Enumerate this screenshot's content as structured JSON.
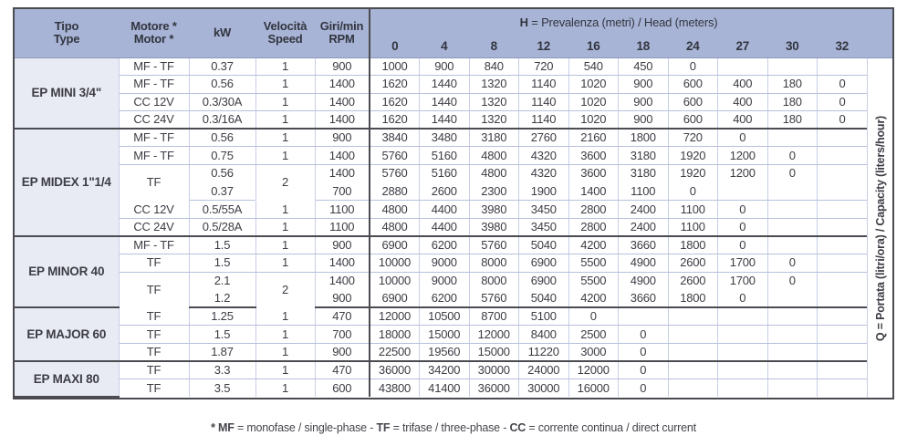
{
  "header": {
    "tipo": [
      "Tipo",
      "Type"
    ],
    "motor": [
      "Motore *",
      "Motor *"
    ],
    "kw": "kW",
    "speed": [
      "Velocità",
      "Speed"
    ],
    "rpm": [
      "Giri/min",
      "RPM"
    ],
    "h_label_bold": "H",
    "h_label_rest": " = Prevalenza (metri) / Head (meters)",
    "h_values": [
      "0",
      "4",
      "8",
      "12",
      "16",
      "18",
      "24",
      "27",
      "30",
      "32"
    ]
  },
  "q_axis": {
    "bold": "Q",
    "rest": " = Portata (litri/ora) / Capacity (liters/hour)"
  },
  "sections": [
    {
      "name": "EP MINI 3/4\"",
      "rows": [
        {
          "motor": "MF - TF",
          "kw": "0.37",
          "speed": "1",
          "rpm": "900",
          "q": [
            "1000",
            "900",
            "840",
            "720",
            "540",
            "450",
            "0",
            "",
            "",
            ""
          ]
        },
        {
          "motor": "MF - TF",
          "kw": "0.56",
          "speed": "1",
          "rpm": "1400",
          "q": [
            "1620",
            "1440",
            "1320",
            "1140",
            "1020",
            "900",
            "600",
            "400",
            "180",
            "0"
          ]
        },
        {
          "motor": "CC 12V",
          "kw": "0.3/30A",
          "speed": "1",
          "rpm": "1400",
          "q": [
            "1620",
            "1440",
            "1320",
            "1140",
            "1020",
            "900",
            "600",
            "400",
            "180",
            "0"
          ]
        },
        {
          "motor": "CC 24V",
          "kw": "0.3/16A",
          "speed": "1",
          "rpm": "1400",
          "q": [
            "1620",
            "1440",
            "1320",
            "1140",
            "1020",
            "900",
            "600",
            "400",
            "180",
            "0"
          ]
        }
      ]
    },
    {
      "name": "EP MIDEX 1\"1/4",
      "rows": [
        {
          "motor": "MF - TF",
          "kw": "0.56",
          "speed": "1",
          "rpm": "900",
          "q": [
            "3840",
            "3480",
            "3180",
            "2760",
            "2160",
            "1800",
            "720",
            "0",
            "",
            ""
          ]
        },
        {
          "motor": "MF - TF",
          "kw": "0.75",
          "speed": "1",
          "rpm": "1400",
          "q": [
            "5760",
            "5160",
            "4800",
            "4320",
            "3600",
            "3180",
            "1920",
            "1200",
            "0",
            ""
          ]
        },
        {
          "motor": "TF",
          "motor_span": 2,
          "kw": "0.56",
          "speed": "2",
          "speed_span": 2,
          "rpm": "1400",
          "merge_top": true,
          "q": [
            "5760",
            "5160",
            "4800",
            "4320",
            "3600",
            "3180",
            "1920",
            "1200",
            "0",
            ""
          ]
        },
        {
          "kw": "0.37",
          "rpm": "700",
          "q": [
            "2880",
            "2600",
            "2300",
            "1900",
            "1400",
            "1100",
            "0",
            "",
            "",
            ""
          ]
        },
        {
          "motor": "CC 12V",
          "kw": "0.5/55A",
          "speed": "1",
          "rpm": "1100",
          "q": [
            "4800",
            "4400",
            "3980",
            "3450",
            "2800",
            "2400",
            "1100",
            "0",
            "",
            ""
          ]
        },
        {
          "motor": "CC 24V",
          "kw": "0.5/28A",
          "speed": "1",
          "rpm": "1100",
          "q": [
            "4800",
            "4400",
            "3980",
            "3450",
            "2800",
            "2400",
            "1100",
            "0",
            "",
            ""
          ]
        }
      ]
    },
    {
      "name": "EP MINOR 40",
      "rows": [
        {
          "motor": "MF - TF",
          "kw": "1.5",
          "speed": "1",
          "rpm": "900",
          "q": [
            "6900",
            "6200",
            "5760",
            "5040",
            "4200",
            "3660",
            "1800",
            "0",
            "",
            ""
          ]
        },
        {
          "motor": "TF",
          "kw": "1.5",
          "speed": "1",
          "rpm": "1400",
          "q": [
            "10000",
            "9000",
            "8000",
            "6900",
            "5500",
            "4900",
            "2600",
            "1700",
            "0",
            ""
          ]
        },
        {
          "motor": "TF",
          "motor_span": 2,
          "kw": "2.1",
          "speed": "2",
          "speed_span": 2,
          "rpm": "1400",
          "merge_top": true,
          "q": [
            "10000",
            "9000",
            "8000",
            "6900",
            "5500",
            "4900",
            "2600",
            "1700",
            "0",
            ""
          ]
        },
        {
          "kw": "1.2",
          "rpm": "900",
          "q": [
            "6900",
            "6200",
            "5760",
            "5040",
            "4200",
            "3660",
            "1800",
            "0",
            "",
            ""
          ]
        }
      ]
    },
    {
      "name": "EP MAJOR 60",
      "rows": [
        {
          "motor": "TF",
          "kw": "1.25",
          "speed": "1",
          "rpm": "470",
          "q": [
            "12000",
            "10500",
            "8700",
            "5100",
            "0",
            "",
            "",
            "",
            "",
            ""
          ]
        },
        {
          "motor": "TF",
          "kw": "1.5",
          "speed": "1",
          "rpm": "700",
          "q": [
            "18000",
            "15000",
            "12000",
            "8400",
            "2500",
            "0",
            "",
            "",
            "",
            ""
          ]
        },
        {
          "motor": "TF",
          "kw": "1.87",
          "speed": "1",
          "rpm": "900",
          "q": [
            "22500",
            "19560",
            "15000",
            "11220",
            "3000",
            "0",
            "",
            "",
            "",
            ""
          ]
        }
      ]
    },
    {
      "name": "EP MAXI 80",
      "rows": [
        {
          "motor": "TF",
          "kw": "3.3",
          "speed": "1",
          "rpm": "470",
          "q": [
            "36000",
            "34200",
            "30000",
            "24000",
            "12000",
            "0",
            "",
            "",
            "",
            ""
          ]
        },
        {
          "motor": "TF",
          "kw": "3.5",
          "speed": "1",
          "rpm": "600",
          "q": [
            "43800",
            "41400",
            "36000",
            "30000",
            "16000",
            "0",
            "",
            "",
            "",
            ""
          ]
        }
      ]
    }
  ],
  "footnote": {
    "seg1": "* MF",
    "seg2": " = monofase / single-phase - ",
    "seg3": "TF",
    "seg4": " = trifase / three-phase - ",
    "seg5": "CC",
    "seg6": " = corrente continua / direct current"
  }
}
